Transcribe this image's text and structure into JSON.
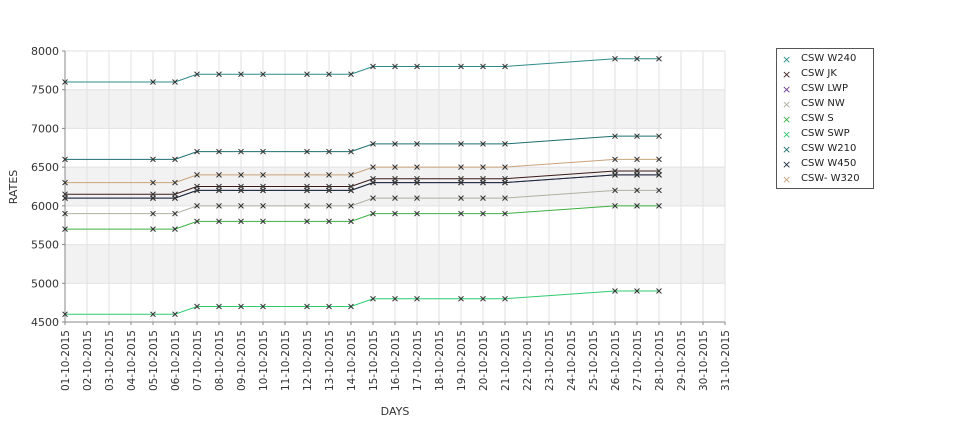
{
  "chart_data": {
    "type": "line",
    "xlabel": "DAYS",
    "ylabel": "RATES",
    "ylim": [
      4500,
      8000
    ],
    "yticks": [
      4500,
      5000,
      5500,
      6000,
      6500,
      7000,
      7500,
      8000
    ],
    "categories": [
      "01-10-2015",
      "02-10-2015",
      "03-10-2015",
      "04-10-2015",
      "05-10-2015",
      "06-10-2015",
      "07-10-2015",
      "08-10-2015",
      "09-10-2015",
      "10-10-2015",
      "11-10-2015",
      "12-10-2015",
      "13-10-2015",
      "14-10-2015",
      "15-10-2015",
      "16-10-2015",
      "17-10-2015",
      "18-10-2015",
      "19-10-2015",
      "20-10-2015",
      "21-10-2015",
      "22-10-2015",
      "23-10-2015",
      "24-10-2015",
      "25-10-2015",
      "26-10-2015",
      "27-10-2015",
      "28-10-2015",
      "29-10-2015",
      "30-10-2015",
      "31-10-2015"
    ],
    "legend_position": "right",
    "grid": true,
    "series": [
      {
        "name": "CSW  W240",
        "color": "#2e8b8b",
        "values": [
          7600,
          null,
          null,
          null,
          7600,
          7600,
          7700,
          7700,
          7700,
          7700,
          null,
          7700,
          7700,
          7700,
          7800,
          7800,
          7800,
          null,
          7800,
          7800,
          7800,
          null,
          null,
          null,
          null,
          7900,
          7900,
          7900,
          null,
          null,
          null
        ]
      },
      {
        "name": "CSW JK",
        "color": "#3a1a1a",
        "values": [
          6150,
          null,
          null,
          null,
          6150,
          6150,
          6250,
          6250,
          6250,
          6250,
          null,
          6250,
          6250,
          6250,
          6350,
          6350,
          6350,
          null,
          6350,
          6350,
          6350,
          null,
          null,
          null,
          null,
          6450,
          6450,
          6450,
          null,
          null,
          null
        ]
      },
      {
        "name": "CSW LWP",
        "color": "#6a3a8a",
        "values": [
          6100,
          null,
          null,
          null,
          6100,
          6100,
          6200,
          6200,
          6200,
          6200,
          null,
          6200,
          6200,
          6200,
          6300,
          6300,
          6300,
          null,
          6300,
          6300,
          6300,
          null,
          null,
          null,
          null,
          6400,
          6400,
          6400,
          null,
          null,
          null
        ]
      },
      {
        "name": "CSW NW",
        "color": "#b0b0a0",
        "values": [
          5900,
          null,
          null,
          null,
          5900,
          5900,
          6000,
          6000,
          6000,
          6000,
          null,
          6000,
          6000,
          6000,
          6100,
          6100,
          6100,
          null,
          6100,
          6100,
          6100,
          null,
          null,
          null,
          null,
          6200,
          6200,
          6200,
          null,
          null,
          null
        ]
      },
      {
        "name": "CSW S",
        "color": "#3cb043",
        "values": [
          5700,
          null,
          null,
          null,
          5700,
          5700,
          5800,
          5800,
          5800,
          5800,
          null,
          5800,
          5800,
          5800,
          5900,
          5900,
          5900,
          null,
          5900,
          5900,
          5900,
          null,
          null,
          null,
          null,
          6000,
          6000,
          6000,
          null,
          null,
          null
        ]
      },
      {
        "name": "CSW SWP",
        "color": "#2ecc71",
        "values": [
          4600,
          null,
          null,
          null,
          4600,
          4600,
          4700,
          4700,
          4700,
          4700,
          null,
          4700,
          4700,
          4700,
          4800,
          4800,
          4800,
          null,
          4800,
          4800,
          4800,
          null,
          null,
          null,
          null,
          4900,
          4900,
          4900,
          null,
          null,
          null
        ]
      },
      {
        "name": "CSW W210",
        "color": "#1f6e6e",
        "values": [
          6600,
          null,
          null,
          null,
          6600,
          6600,
          6700,
          6700,
          6700,
          6700,
          null,
          6700,
          6700,
          6700,
          6800,
          6800,
          6800,
          null,
          6800,
          6800,
          6800,
          null,
          null,
          null,
          null,
          6900,
          6900,
          6900,
          null,
          null,
          null
        ]
      },
      {
        "name": "CSW W450",
        "color": "#1a2a3a",
        "values": [
          6100,
          null,
          null,
          null,
          6100,
          6100,
          6200,
          6200,
          6200,
          6200,
          null,
          6200,
          6200,
          6200,
          6300,
          6300,
          6300,
          null,
          6300,
          6300,
          6300,
          null,
          null,
          null,
          null,
          6400,
          6400,
          6400,
          null,
          null,
          null
        ]
      },
      {
        "name": "CSW- W320",
        "color": "#c8a27a",
        "values": [
          6300,
          null,
          null,
          null,
          6300,
          6300,
          6400,
          6400,
          6400,
          6400,
          null,
          6400,
          6400,
          6400,
          6500,
          6500,
          6500,
          null,
          6500,
          6500,
          6500,
          null,
          null,
          null,
          null,
          6600,
          6600,
          6600,
          null,
          null,
          null
        ]
      }
    ]
  }
}
